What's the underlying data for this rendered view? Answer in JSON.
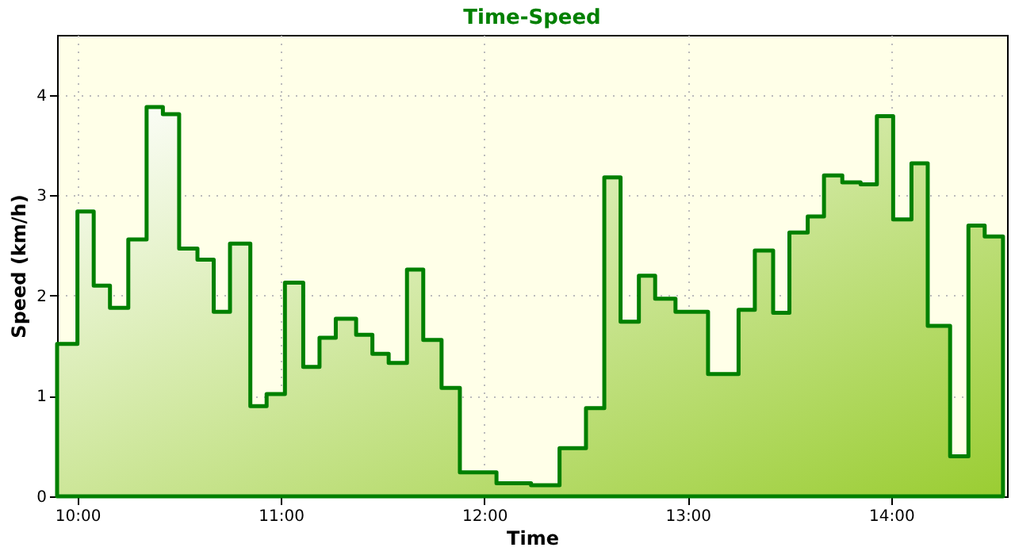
{
  "chart_data": {
    "type": "step",
    "title": "Time-Speed",
    "xlabel": "Time",
    "ylabel": "Speed (km/h)",
    "x": [
      9.9,
      10.0,
      10.08,
      10.16,
      10.25,
      10.34,
      10.42,
      10.5,
      10.59,
      10.67,
      10.75,
      10.85,
      10.93,
      11.02,
      11.11,
      11.19,
      11.27,
      11.37,
      11.45,
      11.53,
      11.62,
      11.7,
      11.79,
      11.88,
      12.06,
      12.23,
      12.37,
      12.5,
      12.59,
      12.67,
      12.76,
      12.84,
      12.94,
      13.1,
      13.25,
      13.33,
      13.42,
      13.5,
      13.59,
      13.67,
      13.76,
      13.85,
      13.93,
      14.01,
      14.1,
      14.18,
      14.29,
      14.38,
      14.46,
      14.55
    ],
    "series": [
      {
        "type": "area",
        "color": "#008000",
        "values": [
          1.52,
          2.84,
          2.1,
          1.88,
          2.56,
          3.88,
          3.81,
          2.47,
          2.36,
          1.84,
          2.52,
          0.9,
          1.02,
          2.13,
          1.29,
          1.58,
          1.77,
          1.61,
          1.42,
          1.33,
          2.26,
          1.56,
          1.08,
          0.24,
          0.13,
          0.11,
          0.48,
          0.88,
          3.18,
          1.74,
          2.2,
          1.97,
          1.84,
          1.22,
          1.86,
          2.45,
          1.83,
          2.63,
          2.79,
          3.2,
          3.13,
          3.11,
          3.79,
          2.76,
          3.32,
          1.7,
          0.4,
          2.7,
          2.59,
          2.59
        ]
      }
    ],
    "xlim": [
      9.9,
      14.57
    ],
    "ylim": [
      0,
      4.6
    ],
    "xticks": [
      {
        "value": 10,
        "label": "10:00"
      },
      {
        "value": 11,
        "label": "11:00"
      },
      {
        "value": 12,
        "label": "12:00"
      },
      {
        "value": 13,
        "label": "13:00"
      },
      {
        "value": 14,
        "label": "14:00"
      }
    ],
    "yticks": [
      {
        "value": 0,
        "label": "0"
      },
      {
        "value": 1,
        "label": "1"
      },
      {
        "value": 2,
        "label": "2"
      },
      {
        "value": 3,
        "label": "3"
      },
      {
        "value": 4,
        "label": "4"
      }
    ],
    "grid": true,
    "marker": "none",
    "line_style": "solid"
  }
}
